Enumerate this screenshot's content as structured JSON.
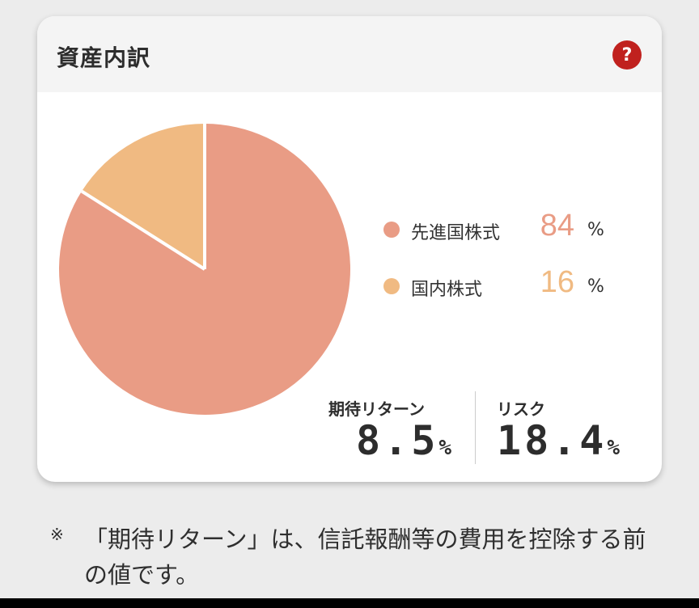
{
  "card": {
    "title": "資産内訳",
    "help_label": "?"
  },
  "legend": [
    {
      "label": "先進国株式",
      "value": "84",
      "unit": "%"
    },
    {
      "label": "国内株式",
      "value": "16",
      "unit": "%"
    }
  ],
  "stats": {
    "expected_return_label": "期待リターン",
    "expected_return_value": "8.5",
    "expected_return_unit": "%",
    "risk_label": "リスク",
    "risk_value": "18.4",
    "risk_unit": "%"
  },
  "footnote": {
    "mark": "※",
    "text": "「期待リターン」は、信託報酬等の費用を控除する前の値です。"
  },
  "colors": {
    "developed_stocks": "#e99c85",
    "domestic_stocks": "#f0ba82",
    "help_red": "#c0211e"
  },
  "chart_data": {
    "type": "pie",
    "categories": [
      "先進国株式",
      "国内株式"
    ],
    "values": [
      84,
      16
    ],
    "colors": [
      "#e99c85",
      "#f0ba82"
    ],
    "start": "top",
    "direction": "clockwise"
  }
}
